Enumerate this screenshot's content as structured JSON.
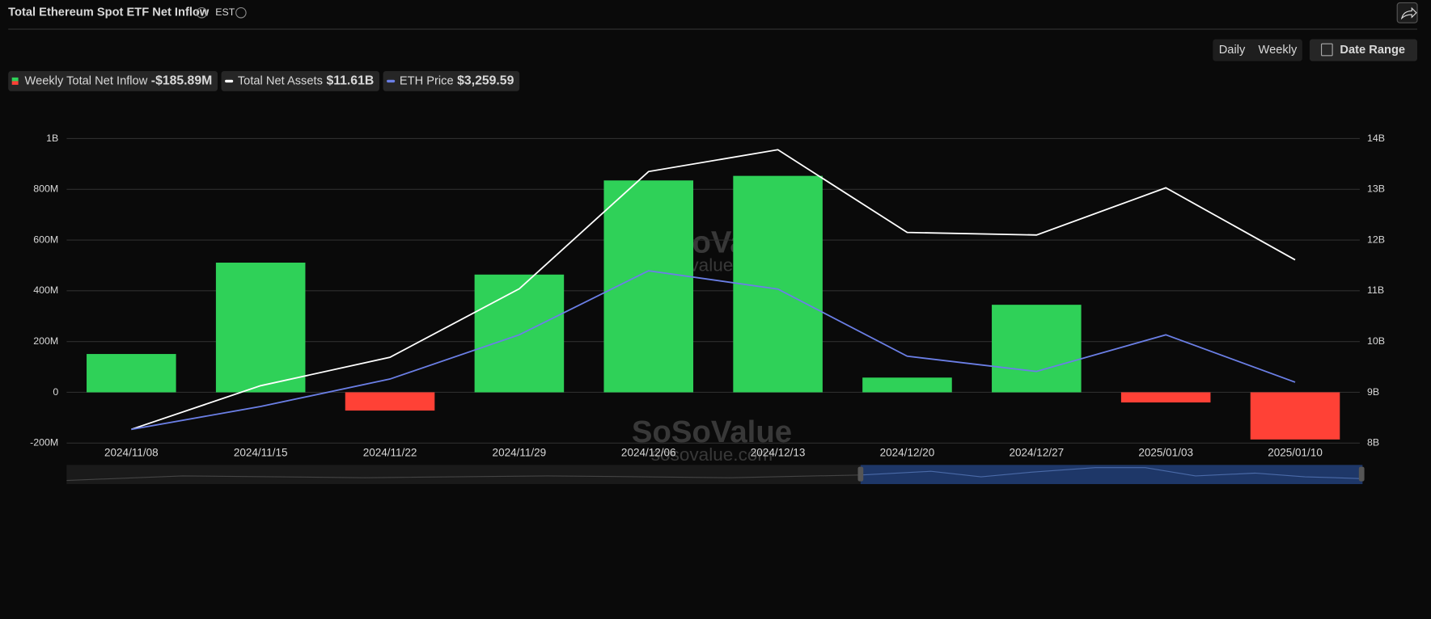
{
  "header": {
    "title": "Total Ethereum Spot ETF Net Inflow",
    "timezone": "EST"
  },
  "controls": {
    "periods": [
      "Daily",
      "Weekly"
    ],
    "active_period": "Weekly",
    "date_range": "Date Range"
  },
  "watermark": {
    "brand": "SoSoValue",
    "site": "sosovalue.com"
  },
  "chart_data": {
    "type": "bar",
    "categories": [
      "2024/11/08",
      "2024/11/15",
      "2024/11/22",
      "2024/11/29",
      "2024/12/06",
      "2024/12/13",
      "2024/12/20",
      "2024/12/27",
      "2025/01/03",
      "2025/01/10"
    ],
    "series": [
      {
        "name": "Weekly Total Net Inflow",
        "type": "bar",
        "color": "#2fd158",
        "negative_color": "#ff4136",
        "legend_value": "-$185.89M",
        "values": [
          151,
          511,
          -72,
          464,
          835,
          853,
          58,
          345,
          -40,
          -185.89
        ]
      },
      {
        "name": "Total Net Assets",
        "type": "line",
        "axis": "y2",
        "color": "#ffffff",
        "legend_value": "$11.61B",
        "values": [
          8.27,
          9.13,
          9.69,
          11.04,
          13.35,
          13.78,
          12.15,
          12.1,
          13.03,
          11.61
        ]
      },
      {
        "name": "ETH Price",
        "type": "line",
        "axis": "hidden",
        "color": "#6b7fe6",
        "legend_value": "$3,259.59",
        "values": [
          2950,
          3100,
          3280,
          3570,
          3990,
          3870,
          3430,
          3330,
          3570,
          3259.59
        ]
      }
    ],
    "ylim": [
      -200,
      1000
    ],
    "yticks": [
      {
        "value": -200,
        "label": "-200M"
      },
      0,
      {
        "value": 200,
        "label": "200M"
      },
      {
        "value": 400,
        "label": "400M"
      },
      {
        "value": 600,
        "label": "600M"
      },
      {
        "value": 800,
        "label": "800M"
      },
      {
        "value": 1000,
        "label": "1B"
      }
    ],
    "y2lim": [
      8,
      14
    ],
    "y2ticks": [
      {
        "value": 8,
        "label": "8B"
      },
      {
        "value": 9,
        "label": "9B"
      },
      {
        "value": 10,
        "label": "10B"
      },
      {
        "value": 11,
        "label": "11B"
      },
      {
        "value": 12,
        "label": "12B"
      },
      {
        "value": 13,
        "label": "13B"
      },
      {
        "value": 14,
        "label": "14B"
      }
    ],
    "grid": true
  }
}
